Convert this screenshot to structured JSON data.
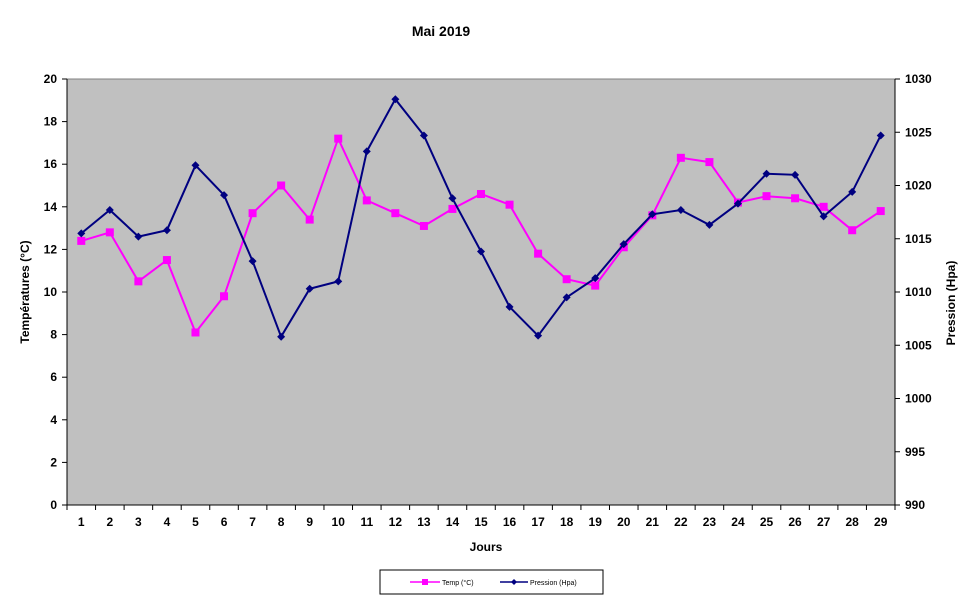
{
  "chart_data": {
    "type": "line",
    "title": "Mai 2019",
    "xlabel": "Jours",
    "ylabel": "Températures (°C)",
    "y2label": "Pression (Hpa)",
    "categories": [
      1,
      2,
      3,
      4,
      5,
      6,
      7,
      8,
      9,
      10,
      11,
      12,
      13,
      14,
      15,
      16,
      17,
      18,
      19,
      20,
      21,
      22,
      23,
      24,
      25,
      26,
      27,
      28,
      29
    ],
    "ylim": [
      0,
      20
    ],
    "yticks": [
      0,
      2,
      4,
      6,
      8,
      10,
      12,
      14,
      16,
      18,
      20
    ],
    "y2lim": [
      990,
      1030
    ],
    "y2ticks": [
      990,
      995,
      1000,
      1005,
      1010,
      1015,
      1020,
      1025,
      1030
    ],
    "plot_background": "#c0c0c0",
    "legend_position": "bottom",
    "series": [
      {
        "name": "Temp (°C)",
        "axis": "left",
        "color": "#ff00ff",
        "marker": "square",
        "values": [
          12.4,
          12.8,
          10.5,
          11.5,
          8.1,
          9.8,
          13.7,
          15.0,
          13.4,
          17.2,
          14.3,
          13.7,
          13.1,
          13.9,
          14.6,
          14.1,
          11.8,
          10.6,
          10.3,
          12.1,
          13.6,
          16.3,
          16.1,
          14.2,
          14.5,
          14.4,
          14.0,
          12.9,
          13.8
        ]
      },
      {
        "name": "Pression (Hpa)",
        "axis": "right",
        "color": "#000080",
        "marker": "diamond",
        "values": [
          1015.5,
          1017.7,
          1015.2,
          1015.8,
          1021.9,
          1019.1,
          1012.9,
          1005.8,
          1010.3,
          1011.0,
          1023.2,
          1028.1,
          1024.7,
          1018.8,
          1013.8,
          1008.6,
          1005.9,
          1009.5,
          1011.3,
          1014.5,
          1017.3,
          1017.7,
          1016.3,
          1018.3,
          1021.1,
          1021.0,
          1017.1,
          1019.4,
          1024.7
        ]
      }
    ]
  }
}
